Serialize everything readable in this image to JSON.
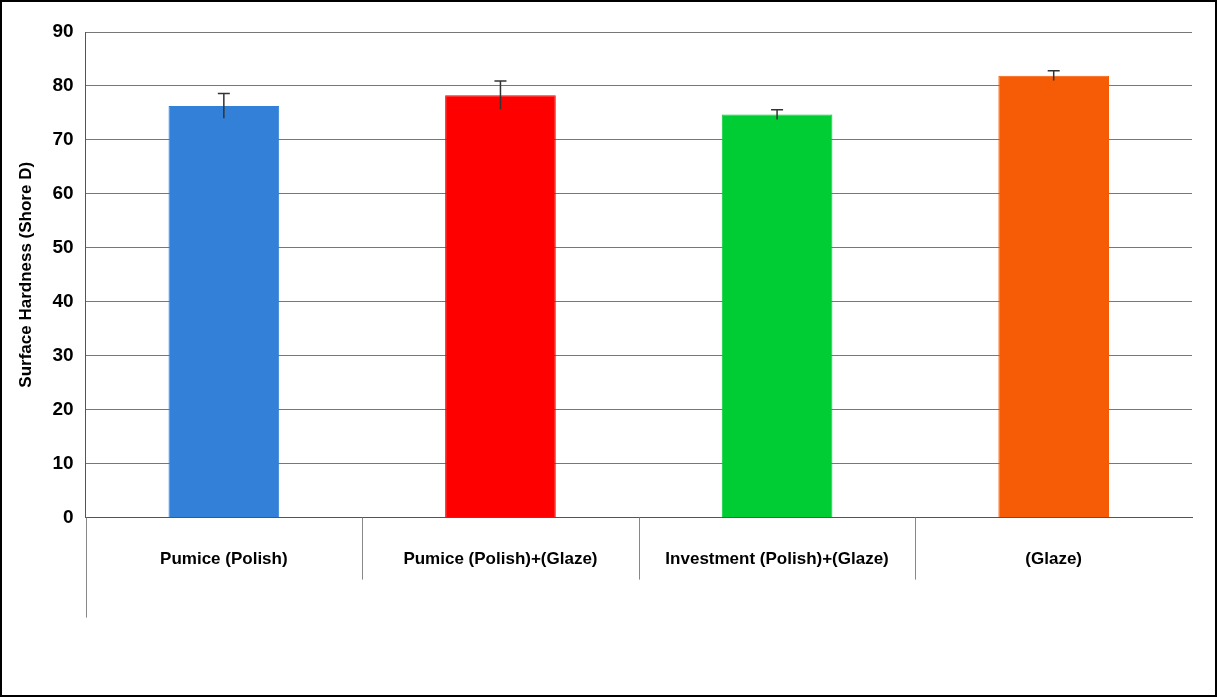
{
  "chart_data": {
    "type": "bar",
    "ylabel": "Surface Hardness (Shore D)",
    "categories": [
      "Pumice (Polish)",
      "Pumice (Polish)+(Glaze)",
      "Investment (Polish)+(Glaze)",
      "(Glaze)"
    ],
    "values": [
      76.3,
      78.3,
      74.7,
      81.9
    ],
    "colors": [
      "#3380d8",
      "#ff0000",
      "#00cc33",
      "#f55c05"
    ],
    "errors": [
      2.3,
      2.6,
      0.9,
      0.9
    ],
    "ylim": [
      0,
      90
    ],
    "yticks": [
      0,
      10,
      20,
      30,
      40,
      50,
      60,
      70,
      80,
      90
    ],
    "grid": "y",
    "legend": false
  }
}
